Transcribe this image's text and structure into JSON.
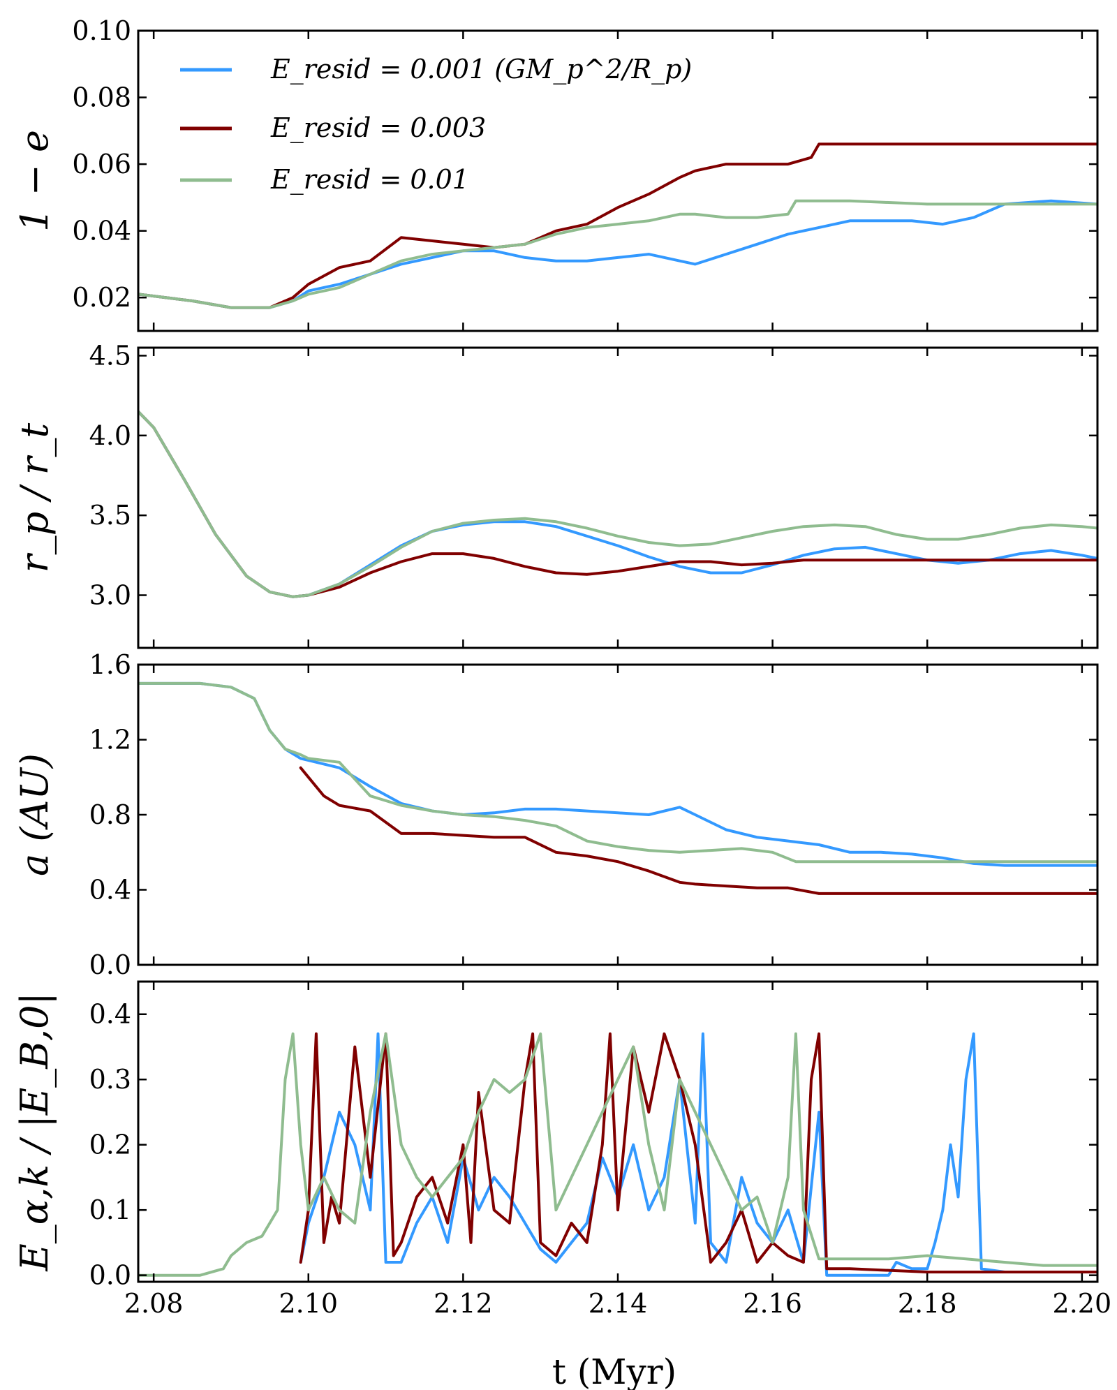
{
  "colors": {
    "resid_0001": "#3399ff",
    "resid_0003": "#800000",
    "resid_001": "#8fbc8f"
  },
  "legend": [
    {
      "key": "resid_0001",
      "label": "E_resid = 0.001 (GM_p^2/R_p)"
    },
    {
      "key": "resid_0003",
      "label": "E_resid = 0.003"
    },
    {
      "key": "resid_001",
      "label": "E_resid = 0.01"
    }
  ],
  "xlabel": "t (Myr)",
  "chart_data": [
    {
      "type": "line",
      "ylabel": "1 − e",
      "xlim": [
        2.078,
        2.202
      ],
      "ylim": [
        0.01,
        0.1
      ],
      "xticks": [
        "2.08",
        "2.10",
        "2.12",
        "2.14",
        "2.16",
        "2.18",
        "2.20"
      ],
      "yticks": [
        "0.02",
        "0.04",
        "0.06",
        "0.08",
        "0.10"
      ],
      "series": [
        {
          "name": "resid_0001",
          "x": [
            2.078,
            2.085,
            2.09,
            2.095,
            2.098,
            2.1,
            2.104,
            2.108,
            2.112,
            2.116,
            2.12,
            2.124,
            2.128,
            2.132,
            2.136,
            2.14,
            2.144,
            2.148,
            2.15,
            2.154,
            2.158,
            2.162,
            2.166,
            2.17,
            2.174,
            2.178,
            2.182,
            2.186,
            2.19,
            2.196,
            2.202
          ],
          "y": [
            0.021,
            0.019,
            0.017,
            0.017,
            0.019,
            0.022,
            0.024,
            0.027,
            0.03,
            0.032,
            0.034,
            0.034,
            0.032,
            0.031,
            0.031,
            0.032,
            0.033,
            0.031,
            0.03,
            0.033,
            0.036,
            0.039,
            0.041,
            0.043,
            0.043,
            0.043,
            0.042,
            0.044,
            0.048,
            0.049,
            0.048
          ]
        },
        {
          "name": "resid_0003",
          "x": [
            2.078,
            2.085,
            2.09,
            2.095,
            2.098,
            2.1,
            2.104,
            2.108,
            2.112,
            2.116,
            2.12,
            2.124,
            2.128,
            2.132,
            2.136,
            2.14,
            2.144,
            2.148,
            2.15,
            2.154,
            2.158,
            2.162,
            2.165,
            2.166,
            2.17,
            2.18,
            2.19,
            2.202
          ],
          "y": [
            0.021,
            0.019,
            0.017,
            0.017,
            0.02,
            0.024,
            0.029,
            0.031,
            0.038,
            0.037,
            0.036,
            0.035,
            0.036,
            0.04,
            0.042,
            0.047,
            0.051,
            0.056,
            0.058,
            0.06,
            0.06,
            0.06,
            0.062,
            0.066,
            0.066,
            0.066,
            0.066,
            0.066
          ]
        },
        {
          "name": "resid_001",
          "x": [
            2.078,
            2.085,
            2.09,
            2.095,
            2.098,
            2.1,
            2.104,
            2.108,
            2.112,
            2.116,
            2.12,
            2.124,
            2.128,
            2.132,
            2.136,
            2.14,
            2.144,
            2.148,
            2.15,
            2.154,
            2.158,
            2.162,
            2.163,
            2.17,
            2.18,
            2.19,
            2.202
          ],
          "y": [
            0.021,
            0.019,
            0.017,
            0.017,
            0.019,
            0.021,
            0.023,
            0.027,
            0.031,
            0.033,
            0.034,
            0.035,
            0.036,
            0.039,
            0.041,
            0.042,
            0.043,
            0.045,
            0.045,
            0.044,
            0.044,
            0.045,
            0.049,
            0.049,
            0.048,
            0.048,
            0.048
          ]
        }
      ]
    },
    {
      "type": "line",
      "ylabel": "r_p / r_t",
      "xlim": [
        2.078,
        2.202
      ],
      "ylim": [
        2.67,
        4.55
      ],
      "xticks": [
        "2.08",
        "2.10",
        "2.12",
        "2.14",
        "2.16",
        "2.18",
        "2.20"
      ],
      "yticks": [
        "3.0",
        "3.5",
        "4.0",
        "4.5"
      ],
      "series": [
        {
          "name": "resid_0001",
          "x": [
            2.078,
            2.08,
            2.084,
            2.088,
            2.092,
            2.095,
            2.098,
            2.1,
            2.104,
            2.108,
            2.112,
            2.116,
            2.12,
            2.124,
            2.128,
            2.132,
            2.136,
            2.14,
            2.144,
            2.148,
            2.152,
            2.156,
            2.16,
            2.164,
            2.168,
            2.172,
            2.176,
            2.18,
            2.184,
            2.188,
            2.192,
            2.196,
            2.2,
            2.202
          ],
          "y": [
            4.15,
            4.05,
            3.72,
            3.38,
            3.12,
            3.02,
            2.99,
            3.0,
            3.07,
            3.19,
            3.31,
            3.4,
            3.44,
            3.46,
            3.46,
            3.43,
            3.37,
            3.31,
            3.24,
            3.18,
            3.14,
            3.14,
            3.19,
            3.25,
            3.29,
            3.3,
            3.26,
            3.22,
            3.2,
            3.22,
            3.26,
            3.28,
            3.25,
            3.23
          ]
        },
        {
          "name": "resid_0003",
          "x": [
            2.078,
            2.08,
            2.084,
            2.088,
            2.092,
            2.095,
            2.098,
            2.1,
            2.104,
            2.108,
            2.112,
            2.116,
            2.12,
            2.124,
            2.128,
            2.132,
            2.136,
            2.14,
            2.144,
            2.148,
            2.152,
            2.156,
            2.16,
            2.164,
            2.166,
            2.17,
            2.18,
            2.19,
            2.202
          ],
          "y": [
            4.15,
            4.05,
            3.72,
            3.38,
            3.12,
            3.02,
            2.99,
            3.0,
            3.05,
            3.14,
            3.21,
            3.26,
            3.26,
            3.23,
            3.18,
            3.14,
            3.13,
            3.15,
            3.18,
            3.21,
            3.21,
            3.19,
            3.2,
            3.22,
            3.22,
            3.22,
            3.22,
            3.22,
            3.22
          ]
        },
        {
          "name": "resid_001",
          "x": [
            2.078,
            2.08,
            2.084,
            2.088,
            2.092,
            2.095,
            2.098,
            2.1,
            2.104,
            2.108,
            2.112,
            2.116,
            2.12,
            2.124,
            2.128,
            2.132,
            2.136,
            2.14,
            2.144,
            2.148,
            2.152,
            2.156,
            2.16,
            2.164,
            2.168,
            2.172,
            2.176,
            2.18,
            2.184,
            2.188,
            2.192,
            2.196,
            2.2,
            2.202
          ],
          "y": [
            4.15,
            4.05,
            3.72,
            3.38,
            3.12,
            3.02,
            2.99,
            3.0,
            3.07,
            3.18,
            3.3,
            3.4,
            3.45,
            3.47,
            3.48,
            3.46,
            3.42,
            3.37,
            3.33,
            3.31,
            3.32,
            3.36,
            3.4,
            3.43,
            3.44,
            3.43,
            3.38,
            3.35,
            3.35,
            3.38,
            3.42,
            3.44,
            3.43,
            3.42
          ]
        }
      ]
    },
    {
      "type": "line",
      "ylabel": "a (AU)",
      "xlim": [
        2.078,
        2.202
      ],
      "ylim": [
        0.0,
        1.6
      ],
      "xticks": [
        "2.08",
        "2.10",
        "2.12",
        "2.14",
        "2.16",
        "2.18",
        "2.20"
      ],
      "yticks": [
        "0.0",
        "0.4",
        "0.8",
        "1.2",
        "1.6"
      ],
      "series": [
        {
          "name": "resid_0001",
          "x": [
            2.078,
            2.086,
            2.09,
            2.093,
            2.095,
            2.097,
            2.099,
            2.1,
            2.104,
            2.108,
            2.112,
            2.116,
            2.12,
            2.124,
            2.128,
            2.132,
            2.136,
            2.14,
            2.144,
            2.148,
            2.15,
            2.154,
            2.158,
            2.162,
            2.166,
            2.17,
            2.174,
            2.178,
            2.182,
            2.186,
            2.19,
            2.202
          ],
          "y": [
            1.5,
            1.5,
            1.48,
            1.42,
            1.25,
            1.15,
            1.1,
            1.09,
            1.05,
            0.95,
            0.86,
            0.82,
            0.8,
            0.81,
            0.83,
            0.83,
            0.82,
            0.81,
            0.8,
            0.84,
            0.8,
            0.72,
            0.68,
            0.66,
            0.64,
            0.6,
            0.6,
            0.59,
            0.57,
            0.54,
            0.53,
            0.53
          ]
        },
        {
          "name": "resid_0003",
          "x": [
            2.099,
            2.1,
            2.102,
            2.104,
            2.108,
            2.112,
            2.116,
            2.12,
            2.124,
            2.128,
            2.132,
            2.136,
            2.14,
            2.144,
            2.148,
            2.15,
            2.154,
            2.158,
            2.162,
            2.166,
            2.17,
            2.18,
            2.19,
            2.202
          ],
          "y": [
            1.05,
            1.0,
            0.9,
            0.85,
            0.82,
            0.7,
            0.7,
            0.69,
            0.68,
            0.68,
            0.6,
            0.58,
            0.55,
            0.5,
            0.44,
            0.43,
            0.42,
            0.41,
            0.41,
            0.38,
            0.38,
            0.38,
            0.38,
            0.38
          ]
        },
        {
          "name": "resid_001",
          "x": [
            2.078,
            2.086,
            2.09,
            2.093,
            2.095,
            2.097,
            2.099,
            2.1,
            2.104,
            2.108,
            2.112,
            2.116,
            2.12,
            2.124,
            2.128,
            2.132,
            2.136,
            2.14,
            2.144,
            2.148,
            2.152,
            2.156,
            2.16,
            2.163,
            2.17,
            2.18,
            2.19,
            2.202
          ],
          "y": [
            1.5,
            1.5,
            1.48,
            1.42,
            1.25,
            1.15,
            1.12,
            1.1,
            1.08,
            0.9,
            0.85,
            0.82,
            0.8,
            0.79,
            0.77,
            0.74,
            0.66,
            0.63,
            0.61,
            0.6,
            0.61,
            0.62,
            0.6,
            0.55,
            0.55,
            0.55,
            0.55,
            0.55
          ]
        }
      ]
    },
    {
      "type": "line",
      "ylabel": "E_α,k / |E_B,0|",
      "xlim": [
        2.078,
        2.202
      ],
      "ylim": [
        -0.01,
        0.45
      ],
      "xticks": [
        "2.08",
        "2.10",
        "2.12",
        "2.14",
        "2.16",
        "2.18",
        "2.20"
      ],
      "yticks": [
        "0.0",
        "0.1",
        "0.2",
        "0.3",
        "0.4"
      ],
      "series": [
        {
          "name": "resid_0001",
          "x": [
            2.099,
            2.1,
            2.102,
            2.104,
            2.106,
            2.108,
            2.109,
            2.11,
            2.112,
            2.114,
            2.116,
            2.118,
            2.12,
            2.122,
            2.124,
            2.126,
            2.128,
            2.13,
            2.132,
            2.134,
            2.136,
            2.138,
            2.14,
            2.142,
            2.144,
            2.146,
            2.148,
            2.15,
            2.151,
            2.152,
            2.154,
            2.156,
            2.158,
            2.16,
            2.162,
            2.164,
            2.166,
            2.167,
            2.17,
            2.175,
            2.176,
            2.178,
            2.18,
            2.181,
            2.182,
            2.183,
            2.184,
            2.185,
            2.186,
            2.187,
            2.19,
            2.202
          ],
          "y": [
            0.02,
            0.08,
            0.15,
            0.25,
            0.2,
            0.1,
            0.37,
            0.02,
            0.02,
            0.08,
            0.12,
            0.05,
            0.18,
            0.1,
            0.15,
            0.12,
            0.08,
            0.04,
            0.02,
            0.05,
            0.08,
            0.18,
            0.12,
            0.2,
            0.1,
            0.15,
            0.3,
            0.08,
            0.37,
            0.05,
            0.02,
            0.15,
            0.08,
            0.05,
            0.1,
            0.02,
            0.25,
            0.0,
            0.0,
            0.0,
            0.02,
            0.01,
            0.01,
            0.05,
            0.1,
            0.2,
            0.12,
            0.3,
            0.37,
            0.01,
            0.005,
            0.005
          ]
        },
        {
          "name": "resid_0003",
          "x": [
            2.099,
            2.1,
            2.101,
            2.102,
            2.103,
            2.104,
            2.106,
            2.108,
            2.11,
            2.111,
            2.112,
            2.114,
            2.116,
            2.118,
            2.12,
            2.121,
            2.122,
            2.124,
            2.126,
            2.128,
            2.129,
            2.13,
            2.132,
            2.134,
            2.136,
            2.138,
            2.139,
            2.14,
            2.142,
            2.144,
            2.146,
            2.148,
            2.15,
            2.152,
            2.154,
            2.156,
            2.158,
            2.16,
            2.162,
            2.164,
            2.165,
            2.166,
            2.167,
            2.17,
            2.18,
            2.19,
            2.202
          ],
          "y": [
            0.02,
            0.1,
            0.37,
            0.05,
            0.12,
            0.08,
            0.35,
            0.15,
            0.37,
            0.03,
            0.05,
            0.12,
            0.15,
            0.08,
            0.2,
            0.05,
            0.28,
            0.1,
            0.08,
            0.3,
            0.37,
            0.05,
            0.03,
            0.08,
            0.05,
            0.2,
            0.37,
            0.1,
            0.35,
            0.25,
            0.37,
            0.3,
            0.2,
            0.02,
            0.05,
            0.1,
            0.02,
            0.05,
            0.03,
            0.02,
            0.3,
            0.37,
            0.01,
            0.01,
            0.005,
            0.005,
            0.005
          ]
        },
        {
          "name": "resid_001",
          "x": [
            2.078,
            2.086,
            2.089,
            2.09,
            2.092,
            2.094,
            2.096,
            2.097,
            2.098,
            2.099,
            2.1,
            2.102,
            2.104,
            2.106,
            2.108,
            2.11,
            2.112,
            2.114,
            2.116,
            2.118,
            2.12,
            2.122,
            2.124,
            2.126,
            2.128,
            2.13,
            2.132,
            2.134,
            2.136,
            2.138,
            2.14,
            2.142,
            2.144,
            2.146,
            2.148,
            2.15,
            2.152,
            2.154,
            2.156,
            2.158,
            2.16,
            2.162,
            2.163,
            2.164,
            2.166,
            2.17,
            2.175,
            2.18,
            2.185,
            2.19,
            2.195,
            2.202
          ],
          "y": [
            0.0,
            0.0,
            0.01,
            0.03,
            0.05,
            0.06,
            0.1,
            0.3,
            0.37,
            0.2,
            0.1,
            0.15,
            0.1,
            0.08,
            0.25,
            0.37,
            0.2,
            0.15,
            0.12,
            0.15,
            0.18,
            0.25,
            0.3,
            0.28,
            0.3,
            0.37,
            0.1,
            0.15,
            0.2,
            0.25,
            0.3,
            0.35,
            0.2,
            0.1,
            0.3,
            0.25,
            0.2,
            0.15,
            0.1,
            0.12,
            0.05,
            0.15,
            0.37,
            0.1,
            0.025,
            0.025,
            0.025,
            0.03,
            0.025,
            0.02,
            0.015,
            0.015
          ]
        }
      ]
    }
  ]
}
